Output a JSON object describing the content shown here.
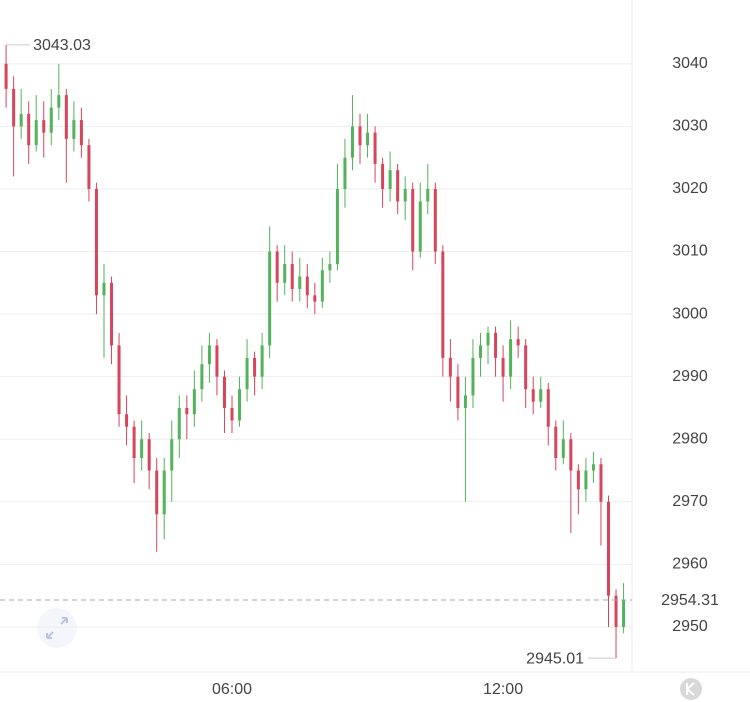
{
  "chart_data": {
    "type": "candlestick",
    "categories": [
      null,
      null,
      null,
      null,
      null,
      null,
      null,
      null,
      null,
      null,
      null,
      null,
      null,
      null,
      null,
      null,
      null,
      null,
      null,
      null,
      null,
      null,
      null,
      null,
      null,
      null,
      null,
      null,
      null,
      null,
      "06:00",
      null,
      null,
      null,
      null,
      null,
      null,
      null,
      null,
      null,
      null,
      null,
      null,
      null,
      null,
      null,
      null,
      null,
      null,
      null,
      null,
      null,
      null,
      null,
      null,
      null,
      null,
      null,
      null,
      null,
      null,
      null,
      null,
      null,
      null,
      null,
      "12:00",
      null,
      null,
      null,
      null,
      null,
      null,
      null,
      null,
      null,
      null,
      null,
      null,
      null,
      null,
      null,
      null
    ],
    "candles": [
      [
        3040,
        3043.03,
        3033,
        3036
      ],
      [
        3036,
        3038,
        3022,
        3030
      ],
      [
        3030,
        3036,
        3028,
        3032
      ],
      [
        3032,
        3034,
        3024,
        3027
      ],
      [
        3027,
        3035,
        3026,
        3031
      ],
      [
        3031,
        3034,
        3025,
        3029
      ],
      [
        3029,
        3036,
        3027,
        3033
      ],
      [
        3033,
        3040,
        3031,
        3035
      ],
      [
        3035,
        3036,
        3021,
        3028
      ],
      [
        3028,
        3034,
        3026,
        3031
      ],
      [
        3031,
        3033,
        3025,
        3027
      ],
      [
        3027,
        3028,
        3018,
        3020
      ],
      [
        3020,
        3021,
        3000,
        3003
      ],
      [
        3003,
        3008,
        2993,
        3005
      ],
      [
        3005,
        3006,
        2992,
        2995
      ],
      [
        2995,
        2997,
        2982,
        2984
      ],
      [
        2984,
        2987,
        2979,
        2982
      ],
      [
        2982,
        2983,
        2973,
        2977
      ],
      [
        2977,
        2983,
        2975,
        2980
      ],
      [
        2980,
        2981,
        2972,
        2975
      ],
      [
        2975,
        2977,
        2962,
        2968
      ],
      [
        2968,
        2977,
        2964,
        2975
      ],
      [
        2975,
        2983,
        2970,
        2980
      ],
      [
        2980,
        2987,
        2977,
        2985
      ],
      [
        2985,
        2987,
        2980,
        2984
      ],
      [
        2984,
        2991,
        2982,
        2988
      ],
      [
        2988,
        2995,
        2986,
        2992
      ],
      [
        2992,
        2997,
        2989,
        2995
      ],
      [
        2995,
        2996,
        2987,
        2990
      ],
      [
        2990,
        2991,
        2981,
        2985
      ],
      [
        2985,
        2987,
        2981,
        2983
      ],
      [
        2983,
        2990,
        2982,
        2988
      ],
      [
        2988,
        2996,
        2986,
        2993
      ],
      [
        2993,
        2994,
        2987,
        2990
      ],
      [
        2990,
        2997,
        2988,
        2995
      ],
      [
        2995,
        3014,
        2993,
        3010
      ],
      [
        3010,
        3011,
        3002,
        3005
      ],
      [
        3005,
        3011,
        3003,
        3008
      ],
      [
        3008,
        3010,
        3002,
        3004
      ],
      [
        3004,
        3009,
        3002,
        3006
      ],
      [
        3006,
        3008,
        3001,
        3003
      ],
      [
        3003,
        3005,
        3000,
        3002
      ],
      [
        3002,
        3009,
        3001,
        3007
      ],
      [
        3007,
        3010,
        3005,
        3008
      ],
      [
        3008,
        3024,
        3007,
        3020
      ],
      [
        3020,
        3028,
        3017,
        3025
      ],
      [
        3025,
        3035,
        3023,
        3030
      ],
      [
        3030,
        3032,
        3024,
        3027
      ],
      [
        3027,
        3032,
        3025,
        3029
      ],
      [
        3029,
        3030,
        3021,
        3024
      ],
      [
        3024,
        3025,
        3017,
        3020
      ],
      [
        3020,
        3026,
        3018,
        3023
      ],
      [
        3023,
        3024,
        3016,
        3018
      ],
      [
        3018,
        3022,
        3015,
        3020
      ],
      [
        3020,
        3021,
        3007,
        3010
      ],
      [
        3010,
        3021,
        3009,
        3018
      ],
      [
        3018,
        3024,
        3016,
        3020
      ],
      [
        3020,
        3021,
        3008,
        3010
      ],
      [
        3010,
        3011,
        2990,
        2993
      ],
      [
        2993,
        2996,
        2986,
        2990
      ],
      [
        2990,
        2992,
        2983,
        2985
      ],
      [
        2985,
        2990,
        2970,
        2987
      ],
      [
        2987,
        2996,
        2985,
        2993
      ],
      [
        2993,
        2997,
        2990,
        2995
      ],
      [
        2995,
        2998,
        2992,
        2997
      ],
      [
        2997,
        2998,
        2990,
        2993
      ],
      [
        2993,
        2995,
        2986,
        2990
      ],
      [
        2990,
        2999,
        2988,
        2996
      ],
      [
        2996,
        2998,
        2993,
        2995
      ],
      [
        2995,
        2996,
        2985,
        2988
      ],
      [
        2988,
        2990,
        2984,
        2986
      ],
      [
        2986,
        2990,
        2985,
        2988
      ],
      [
        2988,
        2989,
        2979,
        2982
      ],
      [
        2982,
        2983,
        2975,
        2977
      ],
      [
        2977,
        2983,
        2976,
        2980
      ],
      [
        2980,
        2981,
        2965,
        2975
      ],
      [
        2975,
        2976,
        2968,
        2972
      ],
      [
        2972,
        2977,
        2970,
        2975
      ],
      [
        2975,
        2978,
        2973,
        2976
      ],
      [
        2976,
        2977,
        2963,
        2970
      ],
      [
        2970,
        2971,
        2950,
        2955
      ],
      [
        2955,
        2956,
        2945.01,
        2950
      ],
      [
        2950,
        2957,
        2949,
        2954.31
      ]
    ],
    "up_color": "#52b35a",
    "down_color": "#d6455a",
    "ylim": [
      2942.8,
      3050.2
    ],
    "yticks": [
      2950,
      2960,
      2970,
      2980,
      2990,
      3000,
      3010,
      3020,
      3030,
      3040
    ],
    "grid": true
  }
}
